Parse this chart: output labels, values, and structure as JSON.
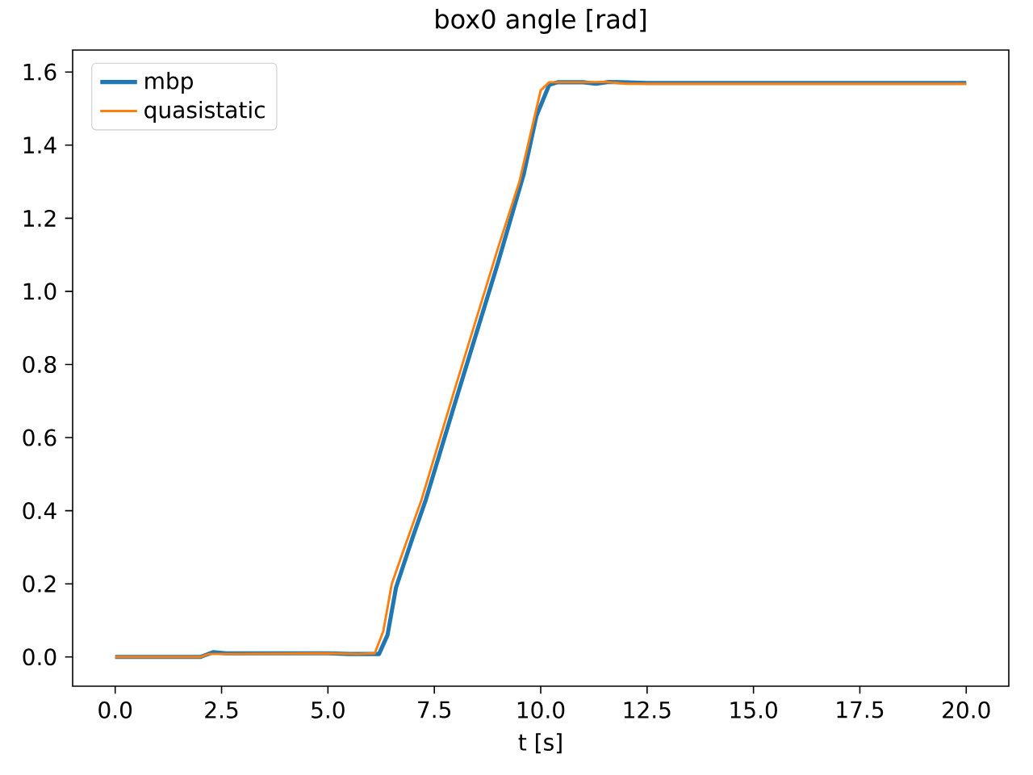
{
  "chart_data": {
    "type": "line",
    "title": "box0 angle [rad]",
    "xlabel": "t [s]",
    "xlim": [
      -1,
      21
    ],
    "ylim": [
      -0.08,
      1.66
    ],
    "xticks": [
      {
        "value": 0,
        "label": "0.0"
      },
      {
        "value": 2.5,
        "label": "2.5"
      },
      {
        "value": 5,
        "label": "5.0"
      },
      {
        "value": 7.5,
        "label": "7.5"
      },
      {
        "value": 10,
        "label": "10.0"
      },
      {
        "value": 12.5,
        "label": "12.5"
      },
      {
        "value": 15,
        "label": "15.0"
      },
      {
        "value": 17.5,
        "label": "17.5"
      },
      {
        "value": 20,
        "label": "20.0"
      }
    ],
    "yticks": [
      {
        "value": 0,
        "label": "0.0"
      },
      {
        "value": 0.2,
        "label": "0.2"
      },
      {
        "value": 0.4,
        "label": "0.4"
      },
      {
        "value": 0.6,
        "label": "0.6"
      },
      {
        "value": 0.8,
        "label": "0.8"
      },
      {
        "value": 1.0,
        "label": "1.0"
      },
      {
        "value": 1.2,
        "label": "1.2"
      },
      {
        "value": 1.4,
        "label": "1.4"
      },
      {
        "value": 1.6,
        "label": "1.6"
      }
    ],
    "legend": "top left",
    "grid": false,
    "series": [
      {
        "name": "mbp",
        "color": "#1f77b4",
        "x": [
          0,
          2.0,
          2.3,
          2.6,
          5,
          5.5,
          6.2,
          6.4,
          6.6,
          7.0,
          7.3,
          8,
          9,
          9.6,
          9.9,
          10.2,
          10.4,
          11,
          11.3,
          11.6,
          12.5,
          20
        ],
        "values": [
          0,
          0,
          0.013,
          0.01,
          0.01,
          0.008,
          0.008,
          0.06,
          0.19,
          0.33,
          0.43,
          0.7,
          1.08,
          1.32,
          1.48,
          1.565,
          1.572,
          1.572,
          1.568,
          1.573,
          1.57,
          1.57
        ]
      },
      {
        "name": "quasistatic",
        "color": "#ff7f0e",
        "x": [
          0,
          2.0,
          2.2,
          5,
          5.7,
          6.1,
          6.3,
          6.5,
          6.8,
          7.2,
          8,
          9,
          9.5,
          9.8,
          10.0,
          10.2,
          11,
          11.5,
          12,
          20
        ],
        "values": [
          0,
          0,
          0.008,
          0.01,
          0.008,
          0.01,
          0.07,
          0.2,
          0.3,
          0.43,
          0.74,
          1.12,
          1.3,
          1.45,
          1.55,
          1.572,
          1.572,
          1.573,
          1.568,
          1.568
        ]
      }
    ]
  }
}
